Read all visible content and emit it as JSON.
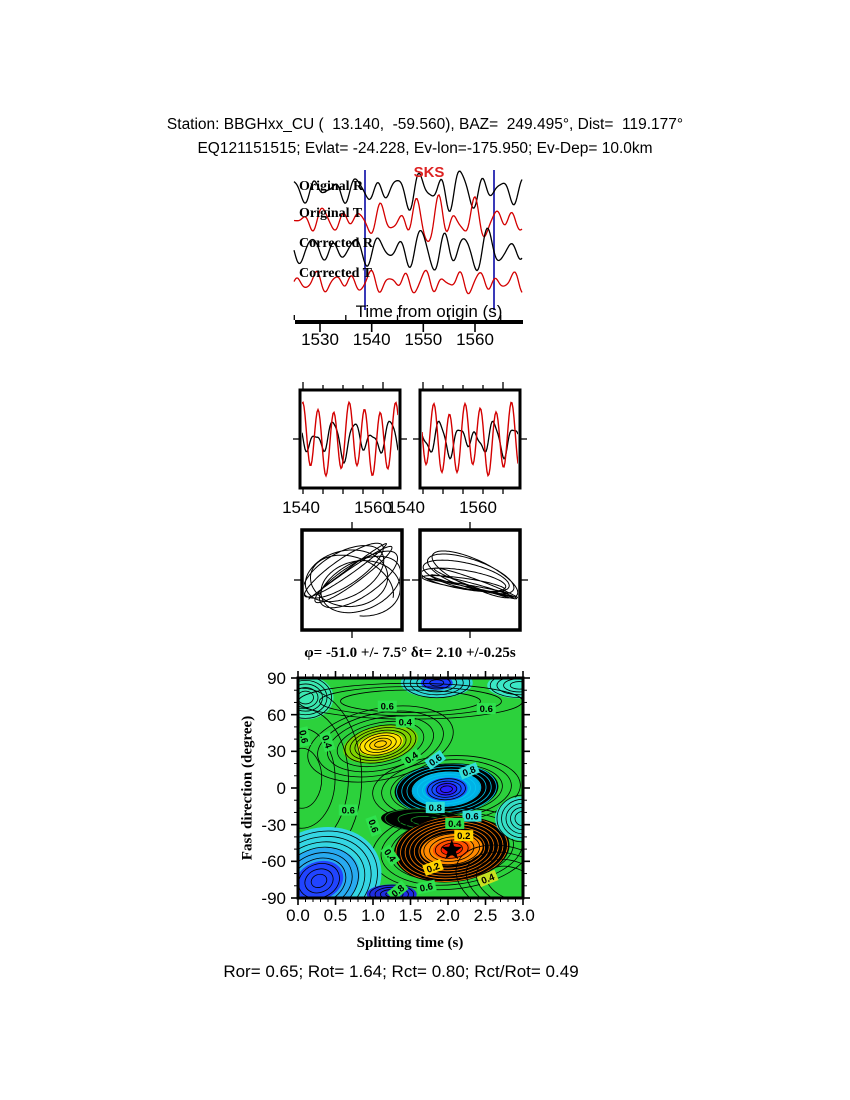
{
  "header": {
    "line1": "Station: BBGHxx_CU (  13.140,  -59.560), BAZ=  249.495°, Dist=  119.177°",
    "line2": "EQ121151515; Evlat= -24.228, Ev-lon=-175.950; Ev-Dep= 10.0km"
  },
  "footer": {
    "stats": "Ror= 0.65; Rot= 1.64; Rct= 0.80; Rct/Rot= 0.49"
  },
  "chart_data": [
    {
      "type": "line",
      "name": "origin-time-waveforms",
      "phase_label": "SKS",
      "xlabel": "Time from origin (s)",
      "xtick_labels": [
        "1530",
        "1540",
        "1550",
        "1560"
      ],
      "xlim": [
        1524,
        1568
      ],
      "analysis_window_s": [
        1538.7,
        1563.7
      ],
      "window_line_color": "#3a3ab8",
      "traces": [
        {
          "label": "Original R",
          "color": "#000000"
        },
        {
          "label": "Original T",
          "color": "#d40000"
        },
        {
          "label": "Corrected R",
          "color": "#000000"
        },
        {
          "label": "Corrected T",
          "color": "#d40000"
        }
      ]
    },
    {
      "type": "line",
      "name": "window-zoom-panels",
      "tick_labels": [
        "1540",
        "1560",
        "1540",
        "1560"
      ],
      "series_colors": [
        "#000000",
        "#d40000"
      ],
      "panels": [
        "original R/T window",
        "corrected R/T window"
      ]
    },
    {
      "type": "scatter",
      "name": "particle-motion-panels",
      "panels": [
        "original particle motion",
        "corrected particle motion"
      ],
      "curve_color": "#000000"
    },
    {
      "type": "contour",
      "name": "splitting-misfit-surface",
      "title": "φ= -51.0 +/- 7.5° δt= 2.10 +/-0.25s",
      "xlabel": "Splitting time (s)",
      "ylabel": "Fast direction (degree)",
      "xlim": [
        0,
        3
      ],
      "ylim": [
        -90,
        90
      ],
      "xtick_labels": [
        "0.0",
        "0.5",
        "1.0",
        "1.5",
        "2.0",
        "2.5",
        "3.0"
      ],
      "ytick_labels": [
        "90",
        "60",
        "30",
        "0",
        "-30",
        "-60",
        "-90"
      ],
      "best_fit": {
        "fast_direction_deg": -51.0,
        "fast_direction_err_deg": 7.5,
        "delay_time_s": 2.1,
        "delay_time_err_s": 0.25
      },
      "star": {
        "x": 2.05,
        "y": -51
      },
      "background_color": "#2cd13c",
      "contour_labels": [
        {
          "v": "0.6",
          "x": 1.19,
          "y": 67,
          "rot": 0,
          "bg": "#2ee24e"
        },
        {
          "v": "0.4",
          "x": 1.43,
          "y": 54,
          "rot": 0,
          "bg": "#2ee24e"
        },
        {
          "v": "0.6",
          "x": 2.51,
          "y": 65,
          "rot": 0,
          "bg": "#2ee24e"
        },
        {
          "v": "0.6",
          "x": 0.08,
          "y": 42,
          "rot": 78,
          "bg": "#2ee24e"
        },
        {
          "v": "0.4",
          "x": 0.39,
          "y": 38,
          "rot": 72,
          "bg": "#2ee24e"
        },
        {
          "v": "0.4",
          "x": 1.51,
          "y": 25,
          "rot": -35,
          "bg": "#2ee24e"
        },
        {
          "v": "0.6",
          "x": 1.83,
          "y": 23,
          "rot": -35,
          "bg": "#35e0d6"
        },
        {
          "v": "0.8",
          "x": 2.28,
          "y": 14,
          "rot": -22,
          "bg": "#35e0d6"
        },
        {
          "v": "0.6",
          "x": 0.67,
          "y": -18,
          "rot": 0,
          "bg": "#2ee24e"
        },
        {
          "v": "0.6",
          "x": 1.01,
          "y": -31,
          "rot": 70,
          "bg": "#2ee24e"
        },
        {
          "v": "0.8",
          "x": 1.83,
          "y": -16,
          "rot": 0,
          "bg": "#35e0d6"
        },
        {
          "v": "0.6",
          "x": 2.32,
          "y": -23,
          "rot": 0,
          "bg": "#35e0d6"
        },
        {
          "v": "0.4",
          "x": 2.09,
          "y": -29,
          "rot": 0,
          "bg": "#2ee24e"
        },
        {
          "v": "0.2",
          "x": 2.21,
          "y": -39,
          "rot": 0,
          "bg": "#ffd200"
        },
        {
          "v": "0.4",
          "x": 1.23,
          "y": -55,
          "rot": 55,
          "bg": "#2ee24e"
        },
        {
          "v": "0.2",
          "x": 1.8,
          "y": -65,
          "rot": -20,
          "bg": "#ffd200"
        },
        {
          "v": "0.4",
          "x": 2.53,
          "y": -74,
          "rot": -22,
          "bg": "#c8e020"
        },
        {
          "v": "0.6",
          "x": 1.71,
          "y": -81,
          "rot": -12,
          "bg": "#2ee24e"
        },
        {
          "v": "0.8",
          "x": 1.33,
          "y": -84,
          "rot": -40,
          "bg": "#2ee24e"
        }
      ],
      "blobs": [
        {
          "name": "cyan-top-left",
          "x": 0.1,
          "y": 74,
          "rot": 0,
          "fills": [
            [
              28,
              22,
              "#3be8b0"
            ]
          ],
          "rings": [
            {
              "n": 5,
              "r0": 8,
              "r1": 26,
              "ry": 0.8,
              "c": "#000000"
            }
          ]
        },
        {
          "name": "blue-top",
          "x": 1.85,
          "y": 86,
          "rot": 0,
          "fills": [
            [
              36,
              15,
              "#2fd8d2"
            ],
            [
              16,
              7,
              "#1a3cff"
            ]
          ],
          "rings": [
            {
              "n": 5,
              "r0": 7,
              "r1": 33,
              "ry": 0.45,
              "c": "#000000"
            }
          ]
        },
        {
          "name": "cyan-top-right",
          "x": 2.95,
          "y": 84,
          "rot": 0,
          "fills": [
            [
              32,
              13,
              "#3be8c6"
            ]
          ],
          "rings": [
            {
              "n": 4,
              "r0": 9,
              "r1": 29,
              "ry": 0.42,
              "c": "#000000"
            }
          ]
        },
        {
          "name": "texture-top",
          "x": 1.5,
          "y": 71,
          "rot": 0,
          "fills": [],
          "rings": [
            {
              "n": 3,
              "r0": 70,
              "r1": 112,
              "ry": 0.16,
              "c": "#000000"
            }
          ]
        },
        {
          "name": "yellow-max",
          "x": 1.1,
          "y": 36,
          "rot": -12,
          "fills": [
            [
              38,
              18,
              "#7fd400"
            ],
            [
              23,
              11,
              "#ffe400"
            ],
            [
              11,
              5,
              "#ffcf00"
            ]
          ],
          "rings": [
            {
              "n": 7,
              "r0": 6,
              "r1": 36,
              "ry": 0.5,
              "c": "#000000"
            },
            {
              "n": 4,
              "r0": 44,
              "r1": 74,
              "ry": 0.48,
              "c": "#000000"
            }
          ]
        },
        {
          "name": "texture-left-mid",
          "x": 0.05,
          "y": 8,
          "rot": 0,
          "fills": [],
          "rings": [
            {
              "n": 4,
              "r0": 20,
              "r1": 60,
              "ry": 1.5,
              "c": "#000000"
            }
          ]
        },
        {
          "name": "blue-mid",
          "x": 1.98,
          "y": -1,
          "rot": -4,
          "fills": [
            [
              52,
              25,
              "#000000"
            ],
            [
              34,
              17,
              "#00b2e6"
            ],
            [
              21,
              12,
              "#1750ff"
            ],
            [
              11,
              7,
              "#2a1eff"
            ]
          ],
          "rings": [
            {
              "n": 4,
              "r0": 6,
              "r1": 19,
              "ry": 0.55,
              "c": "#000000"
            },
            {
              "n": 6,
              "r0": 24,
              "r1": 50,
              "ry": 0.5,
              "c": "#00c8f0"
            },
            {
              "n": 3,
              "r0": 56,
              "r1": 74,
              "ry": 0.45,
              "c": "#000000"
            }
          ]
        },
        {
          "name": "black-saddle",
          "x": 1.72,
          "y": -27,
          "rot": 4,
          "fills": [
            [
              46,
              12,
              "#000000"
            ]
          ],
          "rings": [
            {
              "n": 3,
              "r0": 16,
              "r1": 42,
              "ry": 0.28,
              "c": "#1a9a2a"
            }
          ]
        },
        {
          "name": "red-min",
          "x": 2.05,
          "y": -50,
          "rot": -6,
          "fills": [
            [
              58,
              33,
              "#000000"
            ],
            [
              31,
              16,
              "#ff8a00"
            ],
            [
              19,
              10,
              "#ff5000"
            ],
            [
              10,
              6,
              "#ff1c00"
            ]
          ],
          "rings": [
            {
              "n": 5,
              "r0": 5,
              "r1": 28,
              "ry": 0.55,
              "c": "#000000"
            },
            {
              "n": 6,
              "r0": 33,
              "r1": 56,
              "ry": 0.57,
              "c": "#ff7a00"
            },
            {
              "n": 3,
              "r0": 62,
              "r1": 80,
              "ry": 0.5,
              "c": "#000000"
            }
          ]
        },
        {
          "name": "cyan-bottom-left",
          "x": 0.28,
          "y": -76,
          "rot": -22,
          "fills": [
            [
              64,
              52,
              "#35d6e2"
            ],
            [
              42,
              32,
              "#28aaf0"
            ],
            [
              25,
              19,
              "#2144ff"
            ]
          ],
          "rings": [
            {
              "n": 9,
              "r0": 8,
              "r1": 60,
              "ry": 0.8,
              "c": "#000000"
            }
          ]
        },
        {
          "name": "blue-bottom",
          "x": 1.25,
          "y": -87,
          "rot": 0,
          "fills": [
            [
              25,
              10,
              "#1f2ee0"
            ]
          ],
          "rings": [
            {
              "n": 4,
              "r0": 6,
              "r1": 22,
              "ry": 0.42,
              "c": "#000000"
            }
          ]
        },
        {
          "name": "cyan-right",
          "x": 3.0,
          "y": -25,
          "rot": 0,
          "fills": [
            [
              28,
              22,
              "#35dfc6"
            ]
          ],
          "rings": [
            {
              "n": 5,
              "r0": 8,
              "r1": 26,
              "ry": 0.9,
              "c": "#000000"
            }
          ]
        },
        {
          "name": "texture-bottom-right",
          "x": 2.85,
          "y": -78,
          "rot": 20,
          "fills": [],
          "rings": [
            {
              "n": 4,
              "r0": 26,
              "r1": 58,
              "ry": 0.6,
              "c": "#000000"
            }
          ]
        }
      ]
    }
  ]
}
